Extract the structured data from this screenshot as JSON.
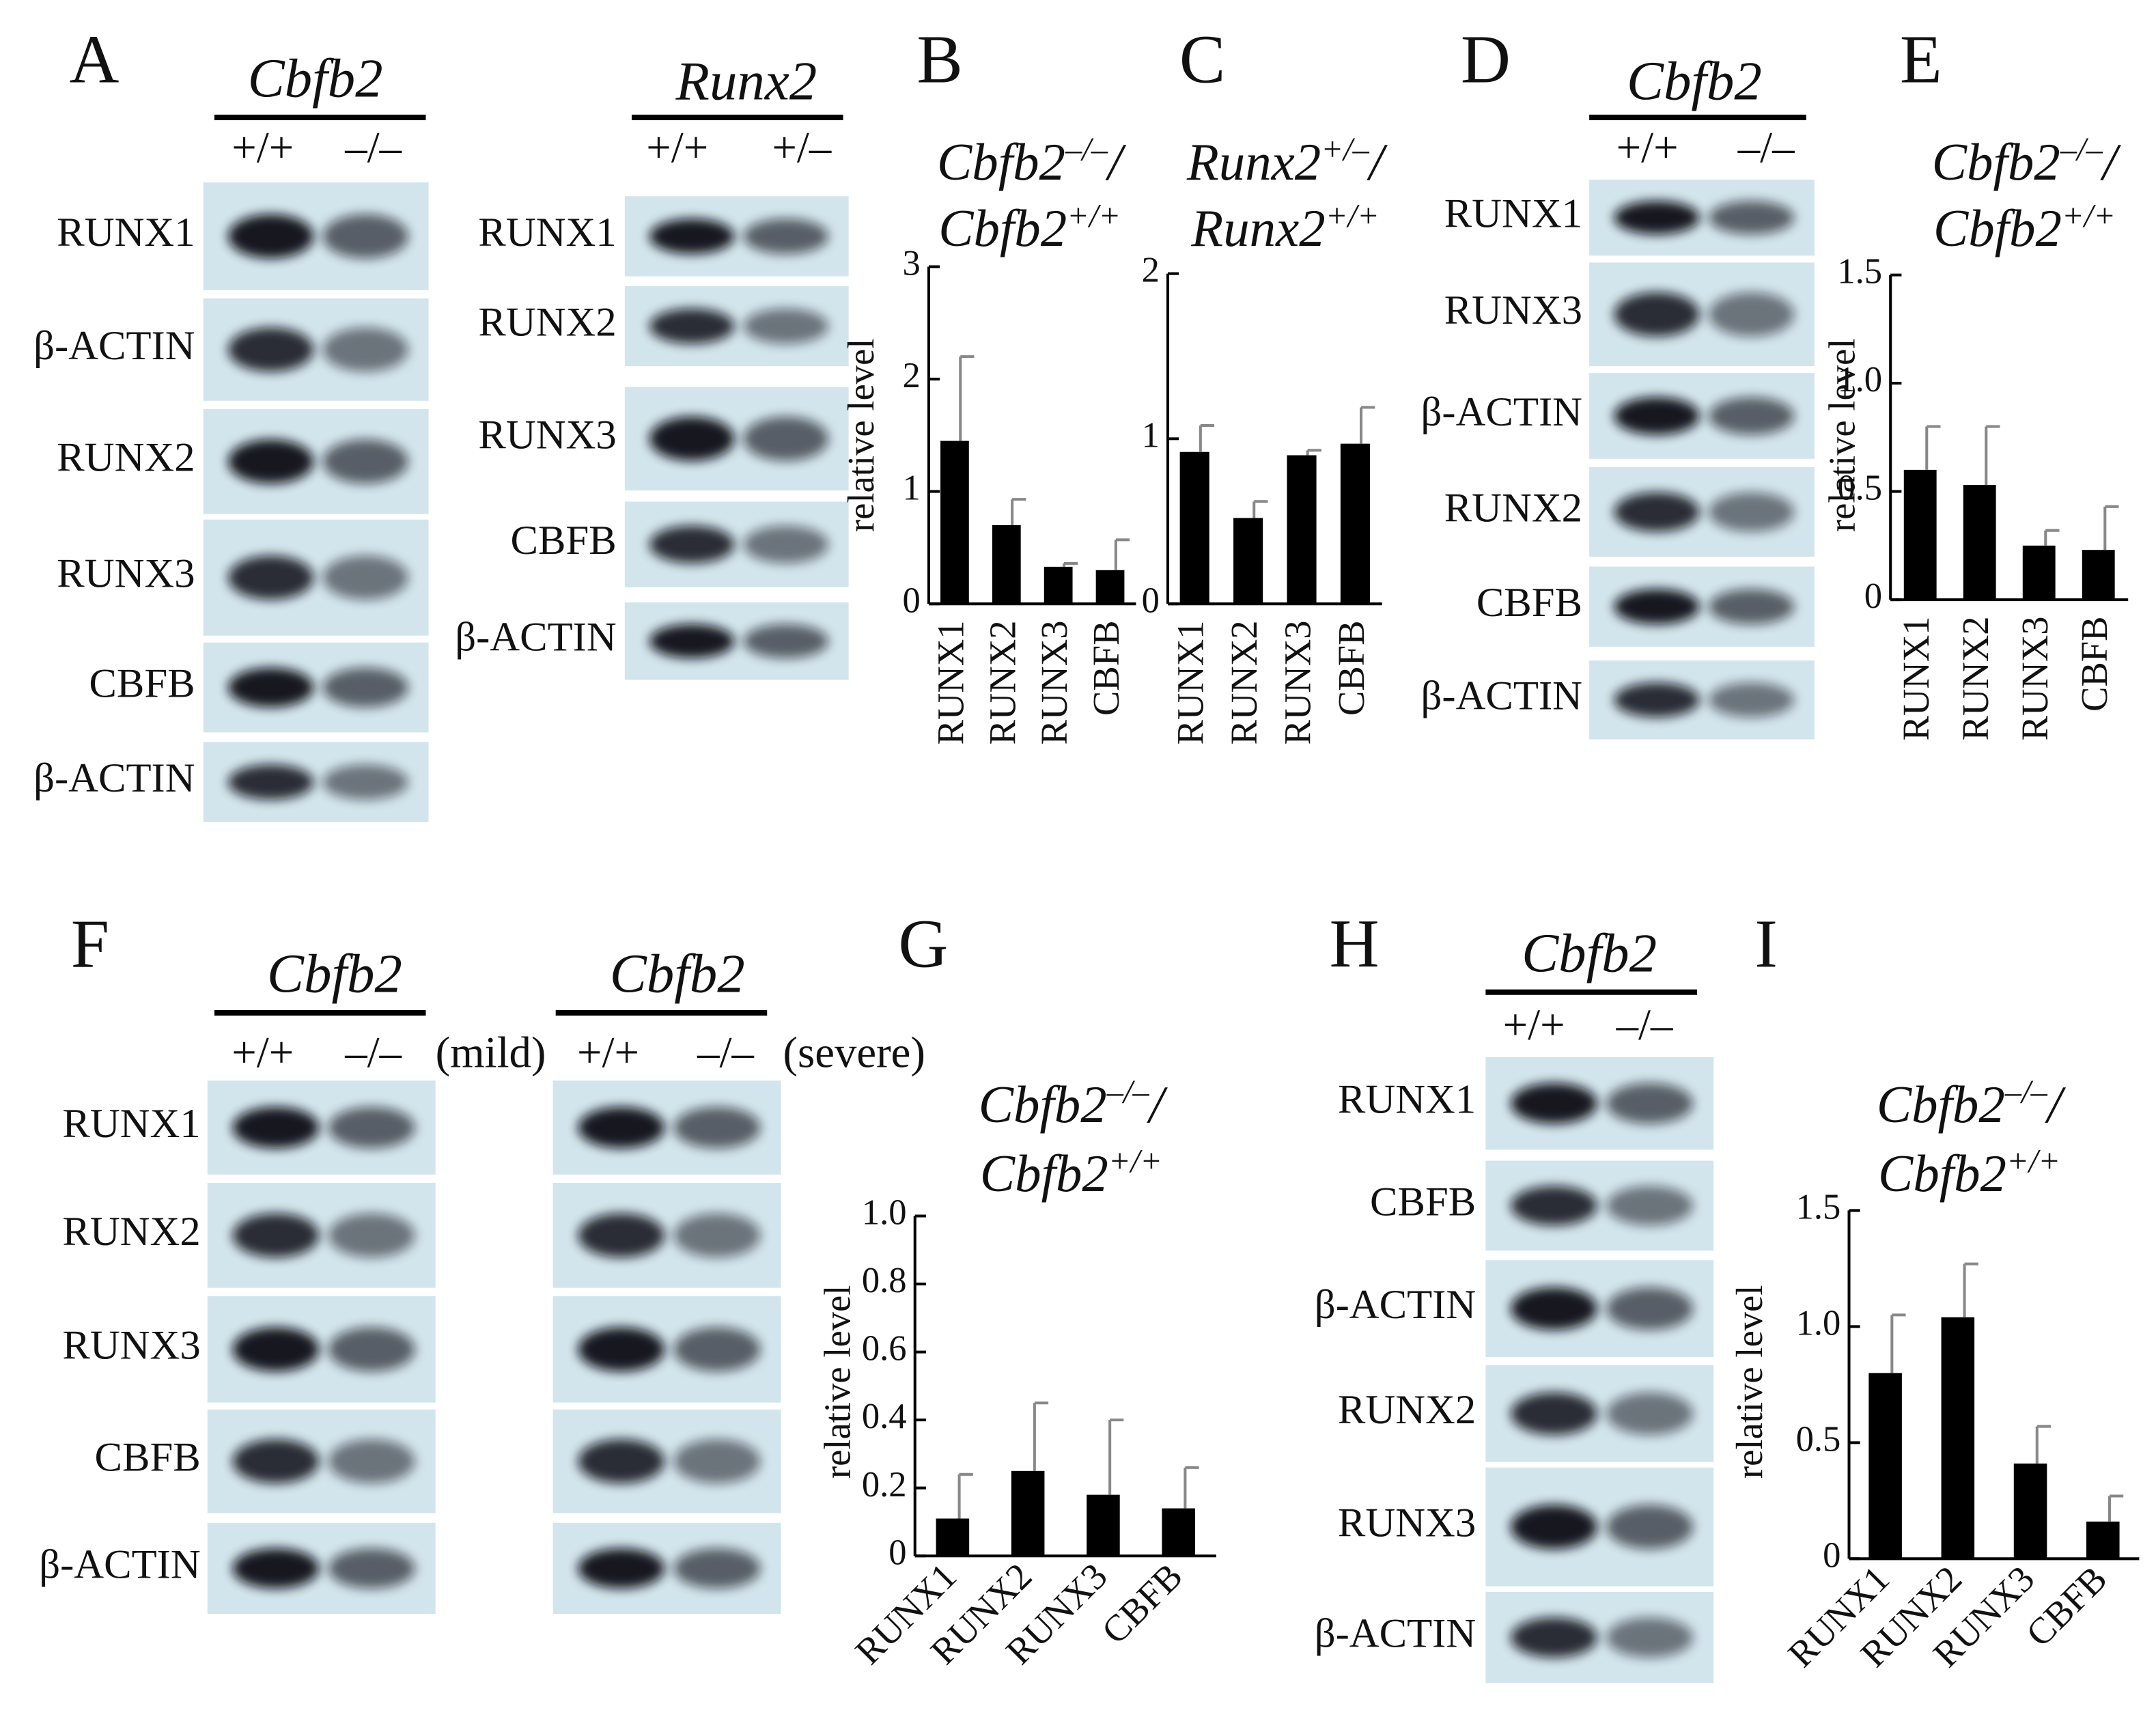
{
  "panel_labels": [
    "A",
    "B",
    "C",
    "D",
    "E",
    "F",
    "G",
    "H",
    "I"
  ],
  "blots": [
    {
      "header": "Cbfb2",
      "genotypes": [
        "+/+",
        "–/–"
      ],
      "rows": [
        "RUNX1",
        "β-ACTIN",
        "RUNX2",
        "RUNX3",
        "CBFB",
        "β-ACTIN"
      ]
    },
    {
      "header": "Runx2",
      "genotypes": [
        "+/+",
        "+/–"
      ],
      "rows": [
        "RUNX1",
        "RUNX2",
        "RUNX3",
        "CBFB",
        "β-ACTIN"
      ]
    },
    {
      "header": "Cbfb2",
      "genotypes": [
        "+/+",
        "–/–"
      ],
      "rows": [
        "RUNX1",
        "RUNX3",
        "β-ACTIN",
        "RUNX2",
        "CBFB",
        "β-ACTIN"
      ]
    },
    {
      "header": "Cbfb2",
      "genotypes": [
        "+/+",
        "–/–"
      ],
      "condition": "(mild)",
      "rows": [
        "RUNX1",
        "RUNX2",
        "RUNX3",
        "CBFB",
        "β-ACTIN"
      ]
    },
    {
      "header": "Cbfb2",
      "genotypes": [
        "+/+",
        "–/–"
      ],
      "condition": "(severe)"
    },
    {
      "header": "Cbfb2",
      "genotypes": [
        "+/+",
        "–/–"
      ],
      "rows": [
        "RUNX1",
        "CBFB",
        "β-ACTIN",
        "RUNX2",
        "RUNX3",
        "β-ACTIN"
      ]
    }
  ],
  "chart_data": [
    {
      "type": "bar",
      "title": [
        [
          {
            "text": "Cbfb2"
          },
          {
            "sup": "–/–"
          },
          {
            "text": "/"
          }
        ],
        [
          {
            "text": "Cbfb2"
          },
          {
            "sup": "+/+"
          }
        ]
      ],
      "ylabel": "relative level",
      "categories": [
        "RUNX1",
        "RUNX2",
        "RUNX3",
        "CBFB"
      ],
      "values": [
        1.45,
        0.7,
        0.33,
        0.3
      ],
      "errors": [
        0.75,
        0.23,
        0.03,
        0.27
      ],
      "color": "#000000",
      "ylim": [
        0,
        3
      ],
      "yticks": [
        0,
        1,
        2,
        3
      ]
    },
    {
      "type": "bar",
      "title": [
        [
          {
            "text": "Runx2"
          },
          {
            "sup": "+/–"
          },
          {
            "text": "/"
          }
        ],
        [
          {
            "text": "Runx2"
          },
          {
            "sup": "+/+"
          }
        ]
      ],
      "categories": [
        "RUNX1",
        "RUNX2",
        "RUNX3",
        "CBFB"
      ],
      "values": [
        0.92,
        0.52,
        0.9,
        0.97
      ],
      "errors": [
        0.16,
        0.1,
        0.03,
        0.22
      ],
      "color": "#000000",
      "ylim": [
        0,
        2
      ],
      "yticks": [
        0,
        1,
        2
      ]
    },
    {
      "type": "bar",
      "title": [
        [
          {
            "text": "Cbfb2"
          },
          {
            "sup": "–/–"
          },
          {
            "text": "/"
          }
        ],
        [
          {
            "text": "Cbfb2"
          },
          {
            "sup": "+/+"
          }
        ]
      ],
      "ylabel": "relative level",
      "categories": [
        "RUNX1",
        "RUNX2",
        "RUNX3",
        "CBFB"
      ],
      "values": [
        0.6,
        0.53,
        0.25,
        0.23
      ],
      "errors": [
        0.2,
        0.27,
        0.07,
        0.2
      ],
      "color": "#000000",
      "ylim": [
        0,
        1.5
      ],
      "yticks": [
        0,
        0.5,
        {
          "value": 1,
          "label": "1.0"
        },
        1.5
      ]
    },
    {
      "type": "bar",
      "title": [
        [
          {
            "text": "Cbfb2"
          },
          {
            "sup": "–/–"
          },
          {
            "text": "/"
          }
        ],
        [
          {
            "text": "Cbfb2"
          },
          {
            "sup": "+/+"
          }
        ]
      ],
      "ylabel": "relative level",
      "categories": [
        "RUNX1",
        "RUNX2",
        "RUNX3",
        "CBFB"
      ],
      "values": [
        0.11,
        0.25,
        0.18,
        0.14
      ],
      "errors": [
        0.13,
        0.2,
        0.22,
        0.12
      ],
      "color": "#000000",
      "ylim": [
        0,
        1
      ],
      "yticks": [
        0,
        0.2,
        0.4,
        0.6,
        0.8,
        {
          "value": 1,
          "label": "1.0"
        }
      ]
    },
    {
      "type": "bar",
      "title": [
        [
          {
            "text": "Cbfb2"
          },
          {
            "sup": "–/–"
          },
          {
            "text": "/"
          }
        ],
        [
          {
            "text": "Cbfb2"
          },
          {
            "sup": "+/+"
          }
        ]
      ],
      "ylabel": "relative level",
      "categories": [
        "RUNX1",
        "RUNX2",
        "RUNX3",
        "CBFB"
      ],
      "values": [
        0.8,
        1.04,
        0.41,
        0.16
      ],
      "errors": [
        0.25,
        0.23,
        0.16,
        0.11
      ],
      "color": "#000000",
      "ylim": [
        0,
        1.5
      ],
      "yticks": [
        0,
        0.5,
        {
          "value": 1,
          "label": "1.0"
        },
        1.5
      ]
    }
  ]
}
